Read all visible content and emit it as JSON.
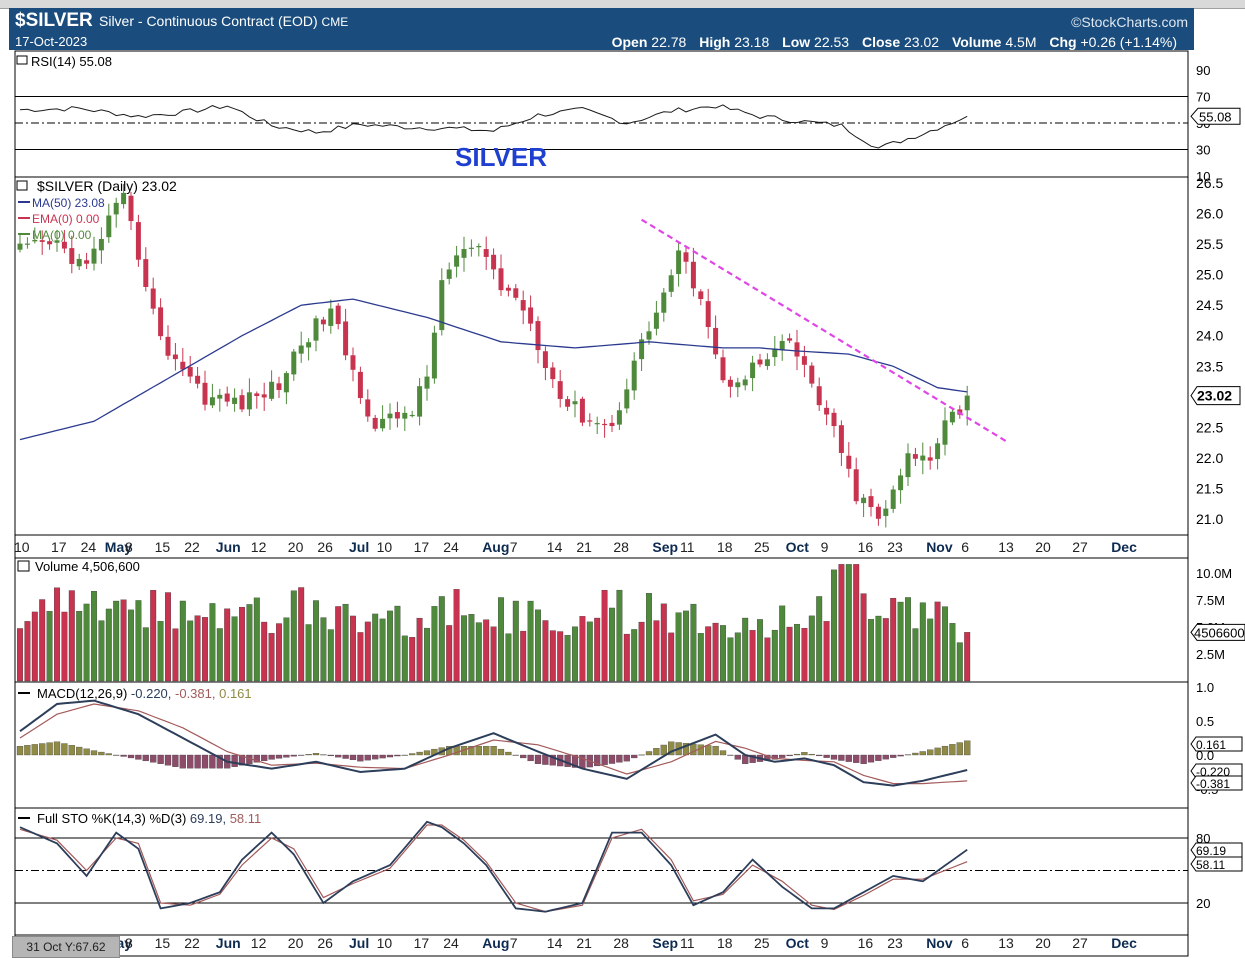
{
  "header": {
    "symbol": "$SILVER",
    "description": "Silver - Continuous Contract (EOD)",
    "exchange": "CME",
    "brand": "©StockCharts.com",
    "date": "17-Oct-2023",
    "open_label": "Open",
    "open": "22.78",
    "high_label": "High",
    "high": "23.18",
    "low_label": "Low",
    "low": "22.53",
    "close_label": "Close",
    "close": "23.02",
    "volume_label": "Volume",
    "volume": "4.5M",
    "chg_label": "Chg",
    "chg": "+0.26 (+1.14%)"
  },
  "colors": {
    "header_bg": "#1a4d7e",
    "up": "#4f8a3c",
    "down": "#c8344f",
    "ma50": "#2b3a8f",
    "trendline": "#e046e6",
    "annotation": "#1f3fd1",
    "macd_hist": "#8f8a45",
    "stoch_k": "#2c3e5a",
    "stoch_d": "#a35a5a"
  },
  "annotation": "SILVER",
  "chart_data": [
    {
      "type": "line",
      "title": "RSI(14) 55.08",
      "legend": [
        "RSI(14) 55.08"
      ],
      "y_ticks": [
        "90",
        "70",
        "50",
        "30",
        "10"
      ],
      "current_label": "55.08",
      "ylim": [
        0,
        100
      ],
      "ref_lines": [
        70,
        50,
        30
      ],
      "series": [
        {
          "name": "RSI(14)",
          "x": [
            0,
            8,
            16,
            22,
            28,
            34,
            40,
            46,
            52,
            58,
            64,
            70,
            76,
            82,
            88,
            94,
            100,
            106,
            111,
            116,
            122,
            128
          ],
          "values": [
            60,
            61,
            55,
            58,
            63,
            48,
            43,
            49,
            47,
            46,
            44,
            56,
            60,
            50,
            59,
            63,
            55,
            51,
            48,
            31,
            42,
            55.08
          ]
        }
      ]
    },
    {
      "type": "candlestick",
      "title": "$SILVER (Daily) 23.02",
      "legend": [
        "$SILVER (Daily) 23.02",
        "MA(50) 23.08",
        "EMA(0) 0.00",
        "MA(0) 0.00"
      ],
      "y_ticks": [
        "26.5",
        "26.0",
        "25.5",
        "25.0",
        "24.5",
        "24.0",
        "23.5",
        "22.5",
        "22.0",
        "21.5",
        "21.0"
      ],
      "current_label": "23.02",
      "ylim": [
        20.75,
        26.5
      ],
      "x_ticks": [
        "10",
        "17",
        "24",
        "May",
        "8",
        "15",
        "22",
        "Jun",
        "12",
        "20",
        "26",
        "Jul",
        "10",
        "17",
        "24",
        "Aug",
        "7",
        "14",
        "21",
        "28",
        "Sep",
        "11",
        "18",
        "25",
        "Oct",
        "9",
        "16",
        "23",
        "Nov",
        "6",
        "13",
        "20",
        "27",
        "Dec"
      ],
      "close_anchors": {
        "x": [
          0,
          5,
          9,
          12,
          14,
          17,
          19,
          22,
          25,
          30,
          35,
          38,
          42,
          45,
          48,
          53,
          55,
          57,
          60,
          63,
          65,
          68,
          70,
          73,
          76,
          80,
          83,
          86,
          89,
          92,
          95,
          98,
          101,
          104,
          107,
          110,
          113,
          116,
          118,
          120,
          123,
          125,
          127,
          128
        ],
        "values": [
          25.4,
          25.5,
          25.1,
          25.9,
          26.2,
          24.9,
          23.9,
          23.5,
          23.0,
          22.9,
          23.2,
          23.9,
          24.4,
          23.4,
          22.5,
          22.8,
          23.3,
          24.9,
          25.4,
          25.3,
          24.8,
          24.5,
          23.9,
          23.0,
          22.7,
          22.5,
          23.6,
          24.4,
          25.3,
          24.7,
          23.2,
          23.4,
          23.6,
          23.9,
          23.2,
          22.4,
          21.4,
          21.0,
          21.4,
          22.0,
          22.0,
          22.7,
          22.8,
          23.02
        ]
      },
      "last_bar": {
        "open": 22.78,
        "high": 23.18,
        "low": 22.53,
        "close": 23.02
      },
      "series": [
        {
          "name": "MA(50) 23.08",
          "x": [
            0,
            10,
            20,
            30,
            38,
            45,
            55,
            65,
            75,
            85,
            95,
            100,
            105,
            112,
            118,
            124,
            128
          ],
          "values": [
            22.3,
            22.6,
            23.3,
            24.0,
            24.5,
            24.6,
            24.3,
            23.9,
            23.8,
            23.9,
            23.8,
            23.8,
            23.75,
            23.7,
            23.5,
            23.15,
            23.08
          ]
        },
        {
          "name": "trendline",
          "x": [
            84,
            127.5
          ],
          "values": [
            25.9,
            22.85
          ]
        }
      ]
    },
    {
      "type": "bar",
      "title": "Volume 4,506,600",
      "legend": [
        "Volume 4,506,600"
      ],
      "y_ticks": [
        "10.0M",
        "7.5M",
        "5.0M",
        "2.5M"
      ],
      "current_label": "4506600",
      "ylim": [
        0,
        11000000
      ],
      "anchors_x": [
        0,
        10,
        20,
        30,
        40,
        50,
        60,
        70,
        80,
        90,
        100,
        108,
        112,
        118,
        124,
        128
      ],
      "anchors_values": [
        6000000,
        6500000,
        6200000,
        5800000,
        6500000,
        5500000,
        6200000,
        5400000,
        6200000,
        5700000,
        5500000,
        6500000,
        9500000,
        6800000,
        5800000,
        4506600
      ]
    },
    {
      "type": "line",
      "title": "MACD(12,26,9) -0.220, -0.381, 0.161",
      "legend": [
        "MACD(12,26,9)",
        "-0.220",
        "-0.381",
        "0.161"
      ],
      "y_ticks": [
        "1.0",
        "0.5",
        "0.0"
      ],
      "current_labels": [
        "0.161",
        "-0.220",
        "-0.381"
      ],
      "ylim": [
        -0.5,
        1.0
      ],
      "series": [
        {
          "name": "MACD",
          "x": [
            0,
            5,
            10,
            16,
            22,
            28,
            34,
            40,
            46,
            52,
            58,
            64,
            70,
            76,
            82,
            88,
            94,
            98,
            102,
            106,
            110,
            114,
            118,
            122,
            128
          ],
          "values": [
            0.35,
            0.75,
            0.8,
            0.6,
            0.25,
            -0.1,
            -0.2,
            -0.1,
            -0.25,
            -0.2,
            0.1,
            0.32,
            0.05,
            -0.2,
            -0.35,
            0.05,
            0.3,
            0.0,
            -0.1,
            -0.05,
            -0.15,
            -0.4,
            -0.45,
            -0.38,
            -0.22
          ]
        },
        {
          "name": "Signal",
          "x": [
            0,
            5,
            10,
            16,
            22,
            28,
            34,
            40,
            46,
            52,
            58,
            64,
            70,
            76,
            82,
            88,
            94,
            98,
            102,
            106,
            110,
            114,
            118,
            122,
            128
          ],
          "values": [
            0.25,
            0.6,
            0.75,
            0.65,
            0.4,
            0.05,
            -0.15,
            -0.12,
            -0.18,
            -0.2,
            0.0,
            0.22,
            0.15,
            -0.05,
            -0.28,
            -0.1,
            0.2,
            0.1,
            -0.05,
            -0.08,
            -0.1,
            -0.3,
            -0.42,
            -0.42,
            -0.381
          ]
        }
      ],
      "histogram": "MACD minus Signal"
    },
    {
      "type": "line",
      "title": "Full STO %K(14,3) %D(3) 69.19, 58.11",
      "legend": [
        "Full STO %K(14,3) %D(3)",
        "69.19",
        "58.11"
      ],
      "y_ticks": [
        "80",
        "20"
      ],
      "current_labels": [
        "69.19",
        "58.11"
      ],
      "ylim": [
        0,
        100
      ],
      "ref_lines": [
        80,
        50,
        20
      ],
      "series": [
        {
          "name": "%K",
          "x": [
            0,
            5,
            9,
            13,
            16,
            19,
            23,
            27,
            30,
            34,
            37,
            41,
            45,
            50,
            55,
            57,
            60,
            63,
            67,
            71,
            76,
            80,
            84,
            88,
            91,
            95,
            99,
            103,
            107,
            110,
            114,
            118,
            122,
            128
          ],
          "values": [
            90,
            75,
            45,
            85,
            70,
            15,
            20,
            30,
            60,
            85,
            65,
            20,
            40,
            55,
            95,
            90,
            75,
            55,
            15,
            12,
            20,
            85,
            85,
            55,
            18,
            30,
            60,
            35,
            15,
            15,
            30,
            45,
            40,
            69.19
          ]
        },
        {
          "name": "%D",
          "x": [
            0,
            5,
            9,
            13,
            16,
            19,
            23,
            27,
            30,
            34,
            37,
            41,
            45,
            50,
            55,
            57,
            60,
            63,
            67,
            71,
            76,
            80,
            84,
            88,
            91,
            95,
            99,
            103,
            107,
            110,
            114,
            118,
            122,
            128
          ],
          "values": [
            88,
            78,
            50,
            80,
            75,
            20,
            18,
            28,
            55,
            80,
            70,
            25,
            38,
            52,
            92,
            92,
            78,
            58,
            20,
            12,
            18,
            80,
            88,
            60,
            22,
            28,
            55,
            40,
            18,
            14,
            27,
            42,
            42,
            58.11
          ]
        }
      ]
    }
  ],
  "crosshair_label": "31 Oct Y:67.62"
}
